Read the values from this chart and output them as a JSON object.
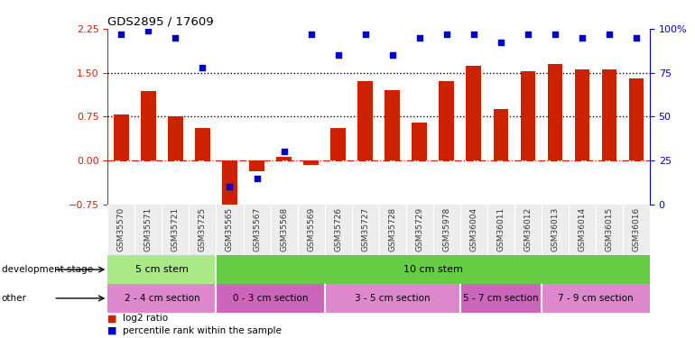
{
  "title": "GDS2895 / 17609",
  "categories": [
    "GSM35570",
    "GSM35571",
    "GSM35721",
    "GSM35725",
    "GSM35565",
    "GSM35567",
    "GSM35568",
    "GSM35569",
    "GSM35726",
    "GSM35727",
    "GSM35728",
    "GSM35729",
    "GSM35978",
    "GSM36004",
    "GSM36011",
    "GSM36012",
    "GSM36013",
    "GSM36014",
    "GSM36015",
    "GSM36016"
  ],
  "log2_ratio": [
    0.78,
    1.18,
    0.75,
    0.55,
    -0.92,
    -0.18,
    0.07,
    -0.07,
    0.55,
    1.35,
    1.2,
    0.65,
    1.35,
    1.62,
    0.88,
    1.52,
    1.65,
    1.55,
    1.55,
    1.4
  ],
  "pct_right": [
    97,
    99,
    95,
    78,
    10,
    15,
    30,
    97,
    85,
    97,
    85,
    95,
    97,
    97,
    92,
    97,
    97,
    95,
    97,
    95
  ],
  "bar_color": "#cc2200",
  "dot_color": "#0000cc",
  "ylim_left": [
    -0.75,
    2.25
  ],
  "ylim_right": [
    0,
    100
  ],
  "yticks_left": [
    -0.75,
    0.0,
    0.75,
    1.5,
    2.25
  ],
  "yticks_right": [
    0,
    25,
    50,
    75,
    100
  ],
  "hlines": [
    0.75,
    1.5
  ],
  "zero_line_color": "#cc2200",
  "hline_color": "black",
  "background_color": "white",
  "dev_stage_groups": [
    {
      "label": "5 cm stem",
      "start": 0,
      "end": 4,
      "color": "#aae888"
    },
    {
      "label": "10 cm stem",
      "start": 4,
      "end": 20,
      "color": "#66cc44"
    }
  ],
  "other_groups": [
    {
      "label": "2 - 4 cm section",
      "start": 0,
      "end": 4,
      "color": "#dd88cc"
    },
    {
      "label": "0 - 3 cm section",
      "start": 4,
      "end": 8,
      "color": "#cc66bb"
    },
    {
      "label": "3 - 5 cm section",
      "start": 8,
      "end": 13,
      "color": "#dd88cc"
    },
    {
      "label": "5 - 7 cm section",
      "start": 13,
      "end": 16,
      "color": "#cc66bb"
    },
    {
      "label": "7 - 9 cm section",
      "start": 16,
      "end": 20,
      "color": "#dd88cc"
    }
  ],
  "legend_items": [
    {
      "label": "log2 ratio",
      "color": "#cc2200"
    },
    {
      "label": "percentile rank within the sample",
      "color": "#0000cc"
    }
  ],
  "row_labels": [
    "development stage",
    "other"
  ],
  "bar_width": 0.55
}
